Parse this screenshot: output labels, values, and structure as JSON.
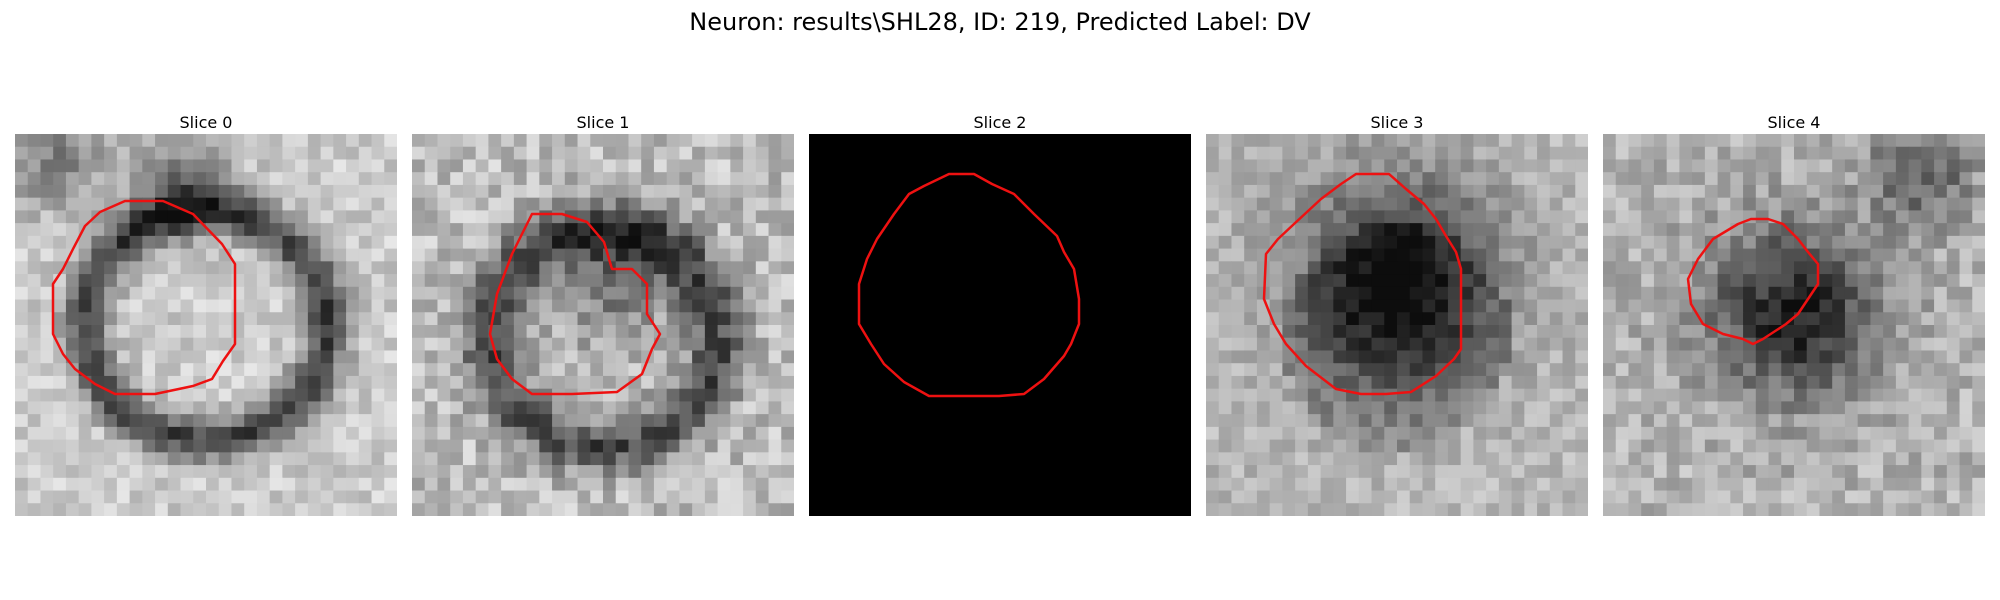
{
  "figure": {
    "title": "Neuron: results\\SHL28, ID: 219, Predicted Label: DV"
  },
  "panels": [
    {
      "title": "Slice 0",
      "image_kind": "grayscale-microscopy"
    },
    {
      "title": "Slice 1",
      "image_kind": "grayscale-microscopy"
    },
    {
      "title": "Slice 2",
      "image_kind": "blank-black"
    },
    {
      "title": "Slice 3",
      "image_kind": "grayscale-microscopy"
    },
    {
      "title": "Slice 4",
      "image_kind": "grayscale-microscopy"
    }
  ],
  "colors": {
    "contour": "#ee1111",
    "background": "#ffffff"
  }
}
